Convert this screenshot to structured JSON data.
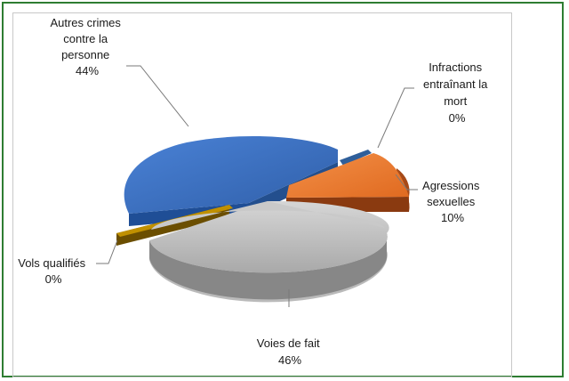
{
  "chart_data": {
    "type": "pie",
    "style": "3d-exploded",
    "title": "",
    "slices": [
      {
        "label": "Autres crimes contre la personne",
        "label_lines": [
          "Autres crimes",
          "contre la",
          "personne"
        ],
        "value": 44,
        "value_label": "44%",
        "color": "#3a6fc4"
      },
      {
        "label": "Infractions entraînant la mort",
        "label_lines": [
          "Infractions",
          "entraînant la",
          "mort"
        ],
        "value": 0,
        "value_label": "0%",
        "color": "#2f5f9a"
      },
      {
        "label": "Agressions sexuelles",
        "label_lines": [
          "Agressions",
          "sexuelles"
        ],
        "value": 10,
        "value_label": "10%",
        "color": "#ee7a30"
      },
      {
        "label": "Voies de fait",
        "label_lines": [
          "Voies de fait"
        ],
        "value": 46,
        "value_label": "46%",
        "color": "#b8b8b8"
      },
      {
        "label": "Vols qualifiés",
        "label_lines": [
          "Vols qualifiés"
        ],
        "value": 0,
        "value_label": "0%",
        "color": "#c09000"
      }
    ],
    "legend": "none"
  }
}
